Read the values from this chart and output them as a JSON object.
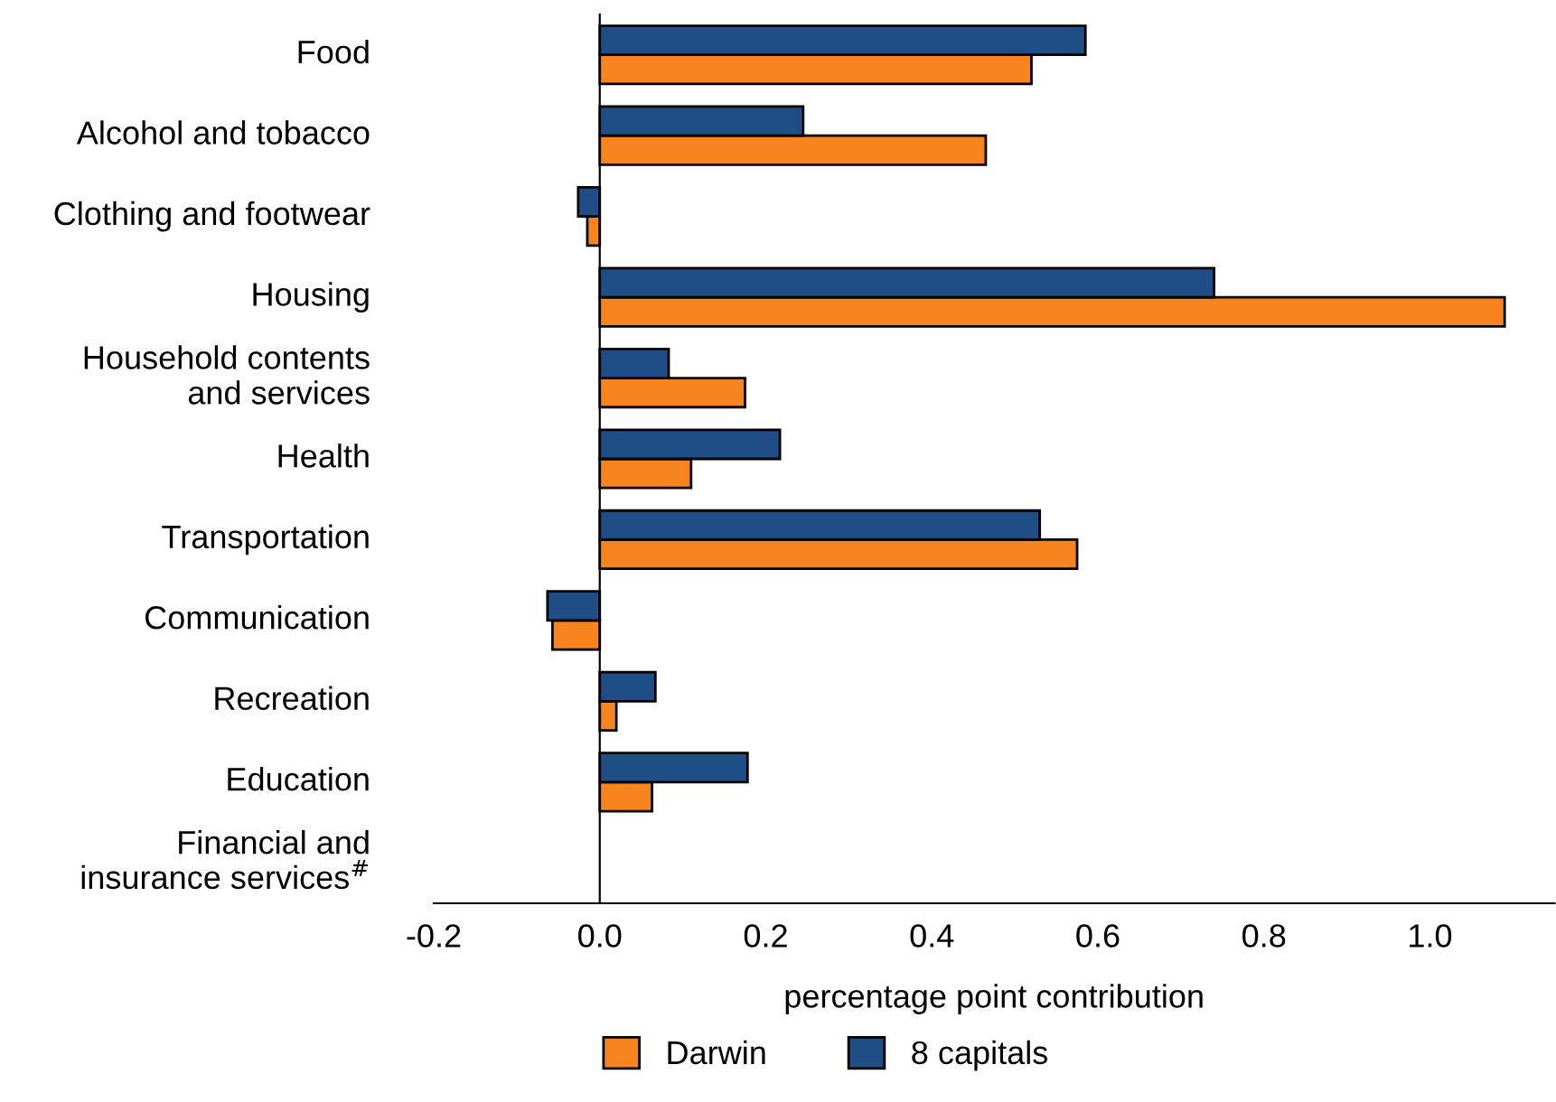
{
  "chart_data": {
    "type": "bar",
    "orientation": "horizontal",
    "xlabel": "percentage point contribution",
    "categories": [
      "Food",
      "Alcohol and tobacco",
      "Clothing and footwear",
      "Housing",
      "Household contents\nand services",
      "Health",
      "Transportation",
      "Communication",
      "Recreation",
      "Education",
      "Financial and\ninsurance services$^{#}$"
    ],
    "series": [
      {
        "name": "Darwin",
        "color": "#f7841f",
        "values": [
          0.52,
          0.465,
          -0.015,
          1.09,
          0.175,
          0.11,
          0.575,
          -0.057,
          0.02,
          0.063,
          null
        ]
      },
      {
        "name": "8 capitals",
        "color": "#1f4e86",
        "values": [
          0.585,
          0.245,
          -0.026,
          0.74,
          0.083,
          0.217,
          0.53,
          -0.063,
          0.067,
          0.178,
          null
        ]
      }
    ],
    "xlim": [
      -0.2,
      1.15
    ],
    "xticks": [
      -0.2,
      {
        "value": 0,
        "label": "0.0"
      },
      0.2,
      0.4,
      0.6,
      0.8,
      {
        "value": 1,
        "label": "1.0"
      }
    ],
    "legend": "bottom"
  }
}
